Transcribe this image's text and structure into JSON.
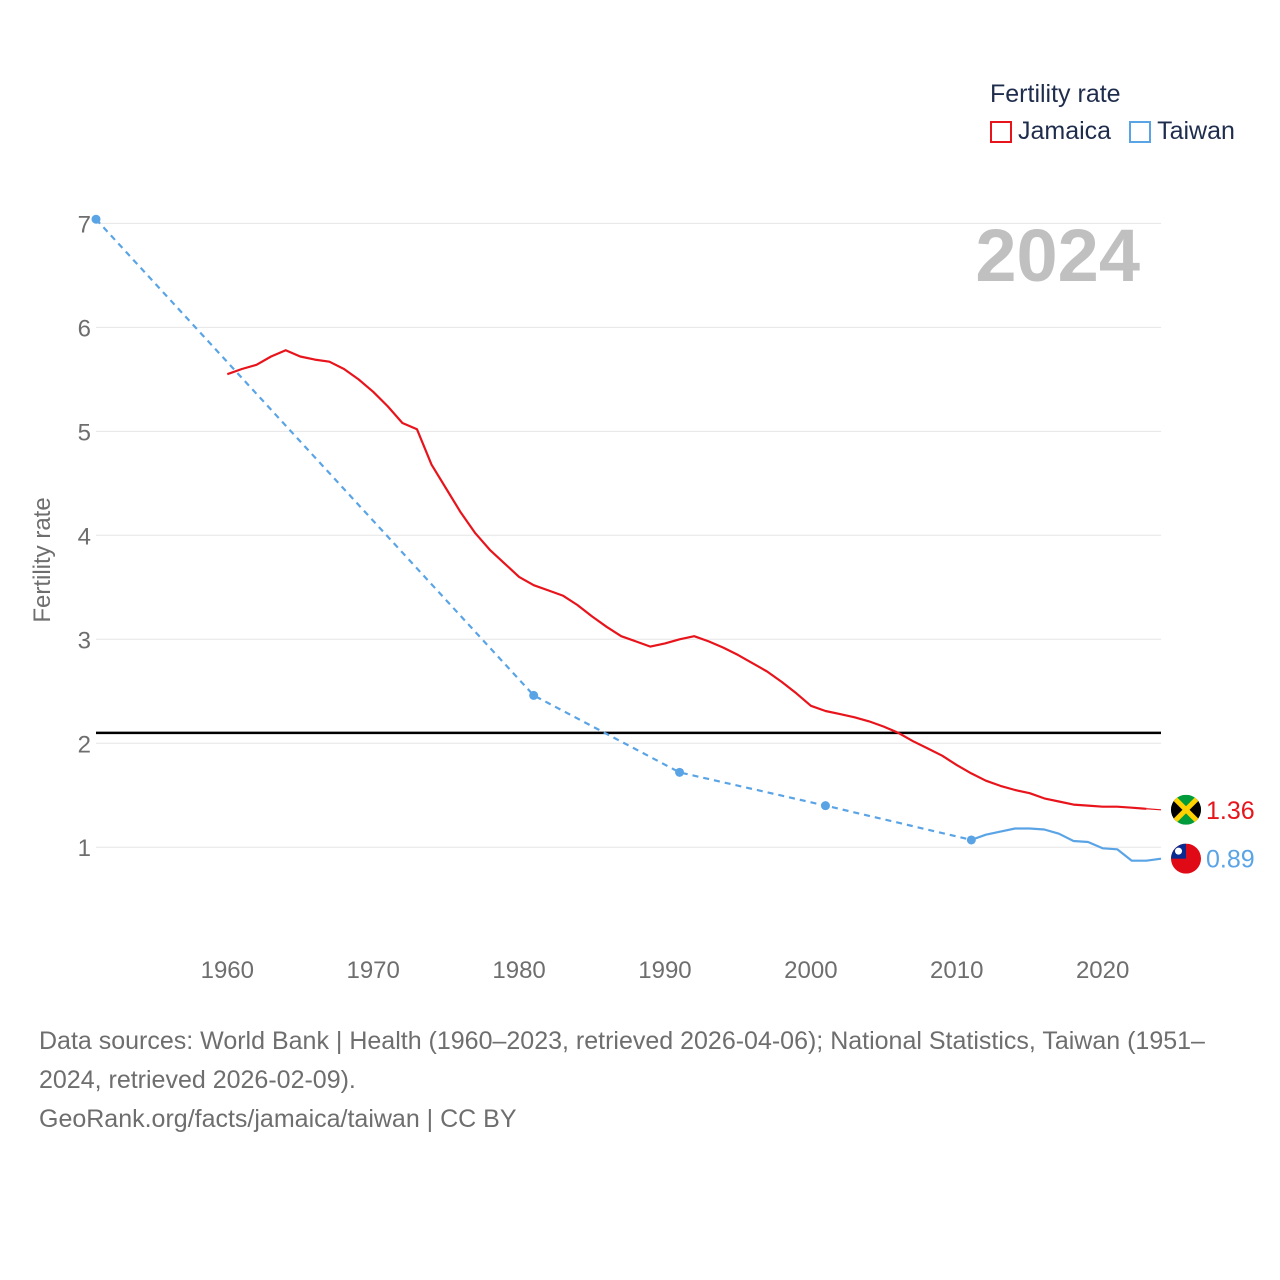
{
  "chart_data": {
    "type": "line",
    "year_label": "2024",
    "ylabel": "Fertility rate",
    "ylim": [
      0.3,
      7.1
    ],
    "xlim": [
      1951,
      2024
    ],
    "yticks": [
      1,
      2,
      3,
      4,
      5,
      6,
      7
    ],
    "xticks": [
      1960,
      1970,
      1980,
      1990,
      2000,
      2010,
      2020
    ],
    "reference_line": 2.1,
    "legend": {
      "title": "Fertility rate",
      "entries": [
        "Jamaica",
        "Taiwan"
      ]
    },
    "series": [
      {
        "name": "Jamaica",
        "color": "#e8141c",
        "style": "solid",
        "end_label": "1.36",
        "flag": "jamaica-flag",
        "x": [
          1960,
          1961,
          1962,
          1963,
          1964,
          1965,
          1966,
          1967,
          1968,
          1969,
          1970,
          1971,
          1972,
          1973,
          1974,
          1975,
          1976,
          1977,
          1978,
          1979,
          1980,
          1981,
          1982,
          1983,
          1984,
          1985,
          1986,
          1987,
          1988,
          1989,
          1990,
          1991,
          1992,
          1993,
          1994,
          1995,
          1996,
          1997,
          1998,
          1999,
          2000,
          2001,
          2002,
          2003,
          2004,
          2005,
          2006,
          2007,
          2008,
          2009,
          2010,
          2011,
          2012,
          2013,
          2014,
          2015,
          2016,
          2017,
          2018,
          2019,
          2020,
          2021,
          2022,
          2023
        ],
        "values": [
          5.55,
          5.6,
          5.64,
          5.72,
          5.78,
          5.72,
          5.69,
          5.67,
          5.6,
          5.5,
          5.38,
          5.24,
          5.08,
          5.02,
          4.68,
          4.45,
          4.22,
          4.02,
          3.86,
          3.73,
          3.6,
          3.52,
          3.47,
          3.42,
          3.33,
          3.22,
          3.12,
          3.03,
          2.98,
          2.93,
          2.96,
          3.0,
          3.03,
          2.98,
          2.92,
          2.85,
          2.77,
          2.69,
          2.59,
          2.48,
          2.36,
          2.31,
          2.28,
          2.25,
          2.21,
          2.16,
          2.1,
          2.02,
          1.95,
          1.88,
          1.79,
          1.71,
          1.64,
          1.59,
          1.55,
          1.52,
          1.47,
          1.44,
          1.41,
          1.4,
          1.39,
          1.39,
          1.38,
          1.37
        ],
        "end_value": 1.36
      },
      {
        "name": "Taiwan",
        "color": "#5aa4e6",
        "style": "mixed",
        "end_label": "0.89",
        "flag": "taiwan-flag",
        "sparse_x": [
          1951,
          1981,
          1991,
          2001,
          2011
        ],
        "sparse_values": [
          7.04,
          2.46,
          1.72,
          1.4,
          1.07
        ],
        "x": [
          2011,
          2012,
          2013,
          2014,
          2015,
          2016,
          2017,
          2018,
          2019,
          2020,
          2021,
          2022,
          2023,
          2024
        ],
        "values": [
          1.07,
          1.12,
          1.15,
          1.18,
          1.18,
          1.17,
          1.13,
          1.06,
          1.05,
          0.99,
          0.98,
          0.87,
          0.87,
          0.89
        ]
      }
    ]
  },
  "caption": {
    "sources": "Data sources: World Bank | Health (1960–2023, retrieved 2026-04-06); National Statistics, Taiwan (1951–2024, retrieved 2026-02-09).",
    "link": "GeoRank.org/facts/jamaica/taiwan | CC BY"
  }
}
